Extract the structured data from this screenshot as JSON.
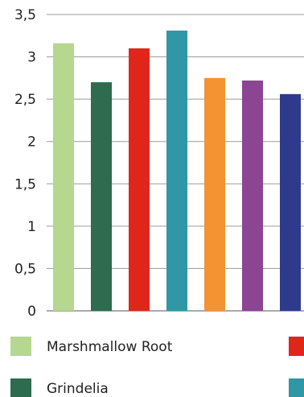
{
  "chart_data": {
    "type": "bar",
    "title": "",
    "xlabel": "",
    "ylabel": "",
    "ylim": [
      0,
      3.5
    ],
    "yticks": [
      "0",
      "0,5",
      "1",
      "1,5",
      "2",
      "2,5",
      "3",
      "3,5"
    ],
    "grid": true,
    "legend_position": "bottom",
    "series": [
      {
        "name": "Marshmallow Root",
        "value": 3.16,
        "color": "#b5d78f"
      },
      {
        "name": "Grindelia",
        "value": 2.7,
        "color": "#2e6b4f"
      },
      {
        "name": "",
        "value": 3.1,
        "color": "#e0261a"
      },
      {
        "name": "",
        "value": 3.31,
        "color": "#2f97a6"
      },
      {
        "name": "",
        "value": 2.75,
        "color": "#f39332"
      },
      {
        "name": "",
        "value": 2.72,
        "color": "#8b4592"
      },
      {
        "name": "",
        "value": 2.56,
        "color": "#2e3b8d"
      }
    ],
    "colors": {
      "grid": "#9a9a9a",
      "axis": "#555555"
    }
  },
  "legend": {
    "items": [
      {
        "label": "Marshmallow Root",
        "color": "#b5d78f"
      },
      {
        "label": "",
        "color": "#e0261a"
      },
      {
        "label": "Grindelia",
        "color": "#2e6b4f"
      },
      {
        "label": "",
        "color": "#2f97a6"
      }
    ]
  }
}
